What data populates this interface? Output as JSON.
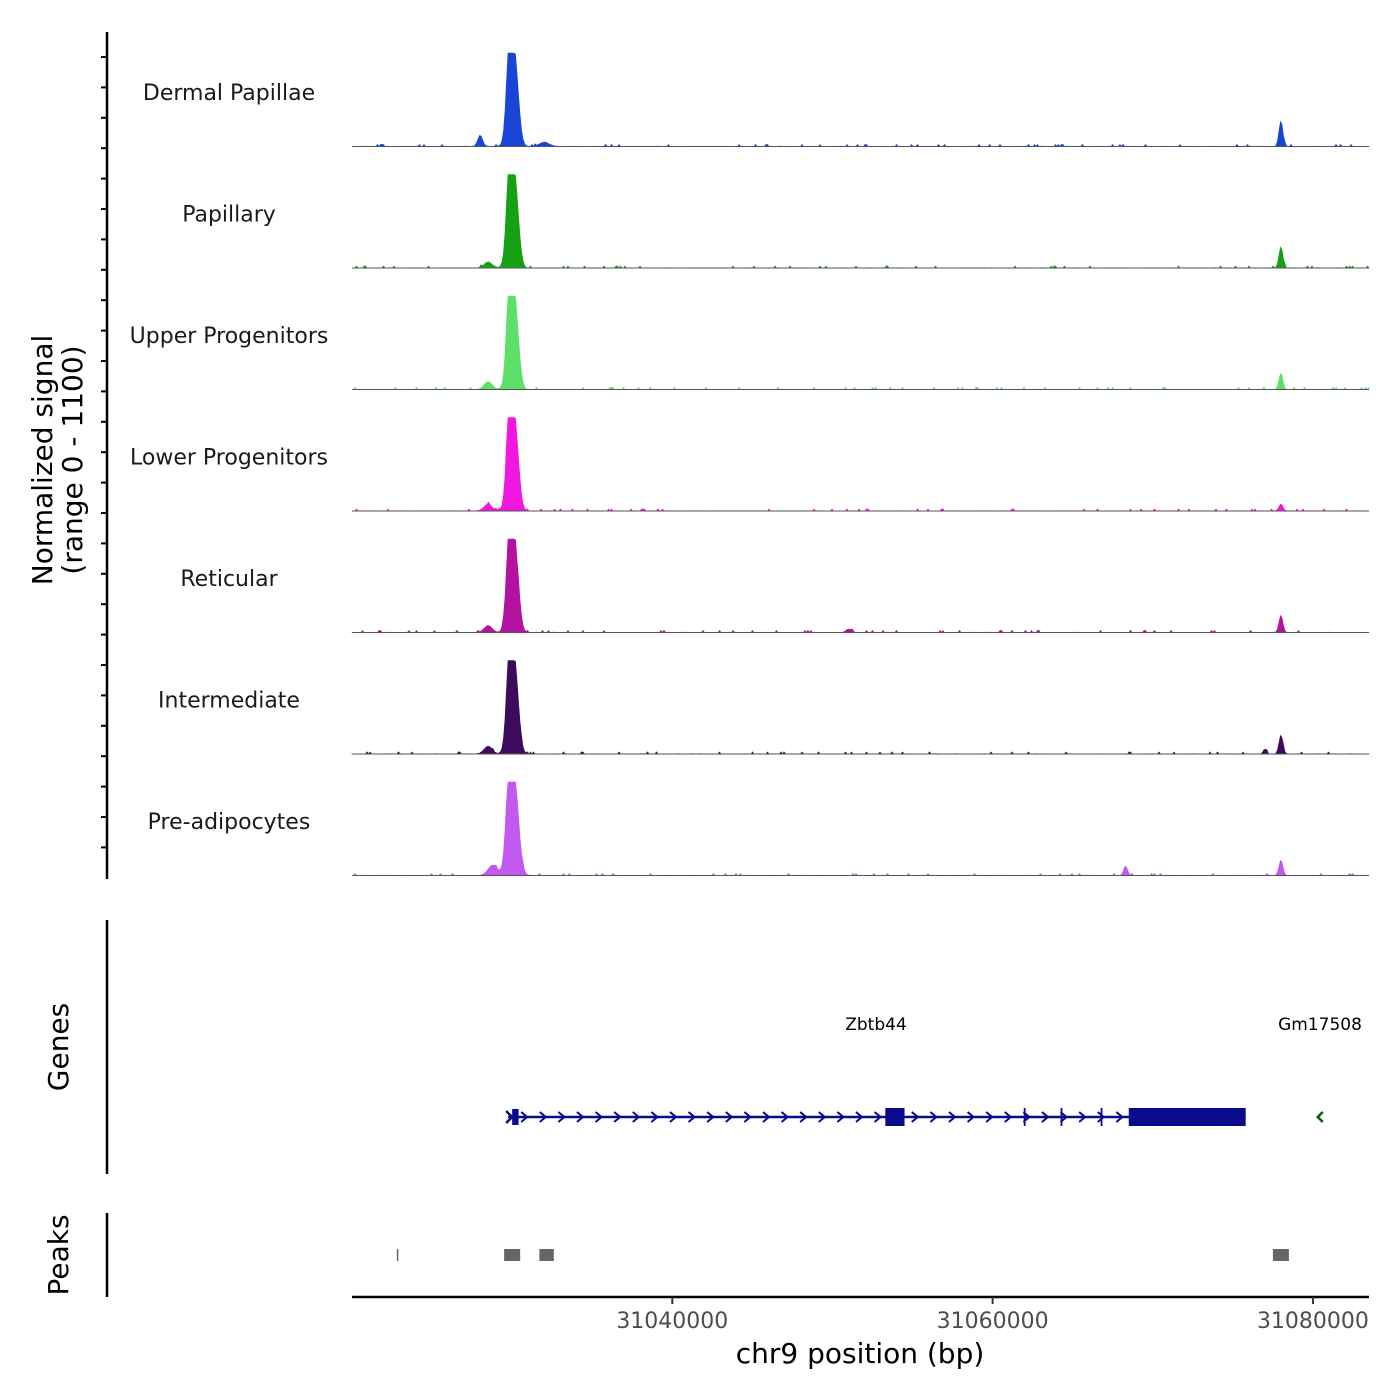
{
  "chart_data": {
    "type": "area",
    "title": "",
    "ylabel_line1": "Normalized signal",
    "ylabel_line2": "(range 0 - 1100)",
    "y_range": [
      0,
      1100
    ],
    "xlabel": "chr9 position (bp)",
    "x_range": [
      31020000,
      31083500
    ],
    "x_ticks": [
      31040000,
      31060000,
      31080000
    ],
    "x_tick_labels": [
      "31040000",
      "31060000",
      "31080000"
    ],
    "tracks": [
      {
        "name": "Dermal Papillae",
        "color": "#1745d6",
        "peaks": [
          [
            31030000,
            1100,
            260
          ],
          [
            31029800,
            520,
            160
          ],
          [
            31030300,
            300,
            200
          ],
          [
            31028000,
            130,
            150
          ],
          [
            31032000,
            50,
            300
          ],
          [
            31078000,
            300,
            120
          ]
        ]
      },
      {
        "name": "Papillary",
        "color": "#16a014",
        "peaks": [
          [
            31030000,
            1100,
            260
          ],
          [
            31029800,
            520,
            160
          ],
          [
            31030300,
            300,
            200
          ],
          [
            31028500,
            70,
            250
          ],
          [
            31078000,
            250,
            120
          ]
        ]
      },
      {
        "name": "Upper Progenitors",
        "color": "#5de06a",
        "peaks": [
          [
            31030000,
            1100,
            260
          ],
          [
            31029800,
            520,
            160
          ],
          [
            31030300,
            300,
            200
          ],
          [
            31028500,
            90,
            250
          ],
          [
            31078000,
            190,
            120
          ]
        ]
      },
      {
        "name": "Lower Progenitors",
        "color": "#f217e0",
        "peaks": [
          [
            31030000,
            1100,
            260
          ],
          [
            31029800,
            520,
            160
          ],
          [
            31030300,
            300,
            200
          ],
          [
            31028500,
            80,
            250
          ],
          [
            31078000,
            80,
            120
          ]
        ]
      },
      {
        "name": "Reticular",
        "color": "#b2129f",
        "peaks": [
          [
            31030000,
            1100,
            260
          ],
          [
            31029800,
            520,
            160
          ],
          [
            31030300,
            300,
            200
          ],
          [
            31028500,
            80,
            250
          ],
          [
            31051000,
            40,
            150
          ],
          [
            31078000,
            200,
            120
          ]
        ]
      },
      {
        "name": "Intermediate",
        "color": "#3d0b5c",
        "peaks": [
          [
            31030000,
            1100,
            260
          ],
          [
            31029800,
            520,
            160
          ],
          [
            31030300,
            300,
            200
          ],
          [
            31028500,
            90,
            250
          ],
          [
            31077000,
            60,
            100
          ],
          [
            31078000,
            220,
            120
          ]
        ]
      },
      {
        "name": "Pre-adipocytes",
        "color": "#c159f0",
        "peaks": [
          [
            31030000,
            1100,
            260
          ],
          [
            31029800,
            560,
            200
          ],
          [
            31030300,
            350,
            240
          ],
          [
            31028800,
            120,
            300
          ],
          [
            31068300,
            110,
            120
          ],
          [
            31078000,
            180,
            120
          ]
        ]
      }
    ],
    "genes_label": "Genes",
    "genes": [
      {
        "name": "Zbtb44",
        "strand": "+",
        "color": "#0a0a8c",
        "start": 31030000,
        "end": 31075800,
        "exons": [
          [
            31030000,
            31030400
          ],
          [
            31053300,
            31054500
          ],
          [
            31068500,
            31075800
          ]
        ],
        "small_exons": [
          31062000,
          31064300,
          31066800
        ]
      },
      {
        "name": "Gm17508",
        "strand": "-",
        "color": "#006400",
        "start": 31080300,
        "end": 31080800,
        "exons": []
      }
    ],
    "peaks_label": "Peaks",
    "peak_regions": [
      [
        31022800,
        31022950
      ],
      [
        31029500,
        31030500
      ],
      [
        31031700,
        31032600
      ],
      [
        31077500,
        31078500
      ]
    ]
  }
}
